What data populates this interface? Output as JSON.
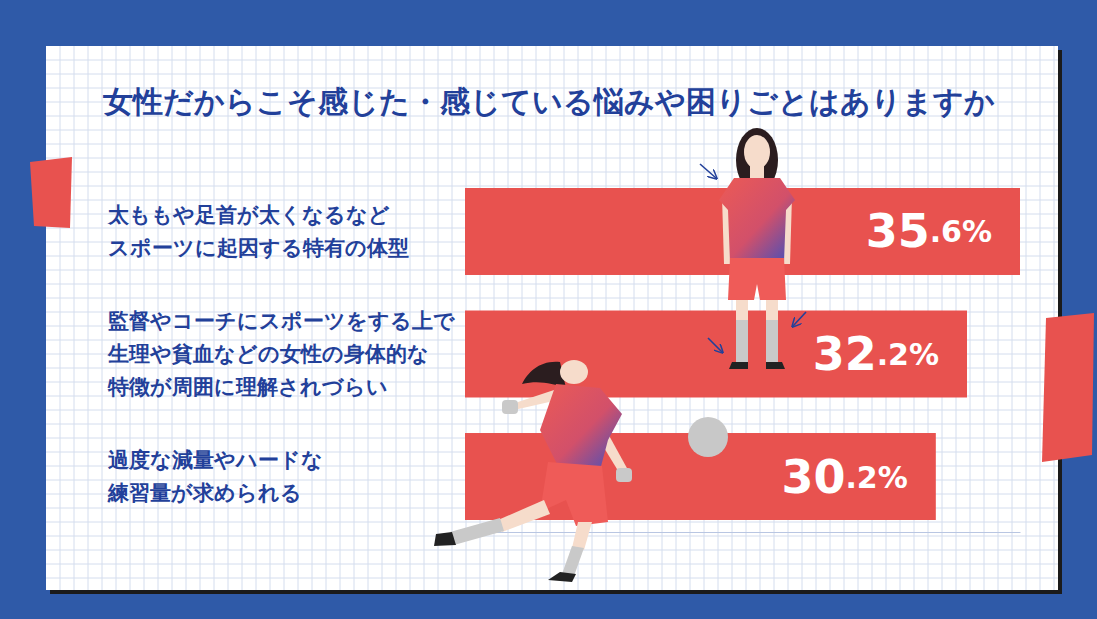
{
  "chart_data": {
    "type": "bar",
    "orientation": "horizontal",
    "title": "女性だからこそ感じた・感じている悩みや困りごとはありますか",
    "categories": [
      "太ももや足首が太くなるなど\nスポーツに起因する特有の体型",
      "監督やコーチにスポーツをする上で\n生理や貧血などの女性の身体的な\n特徴が周囲に理解されづらい",
      "過度な減量やハードな\n練習量が求められる"
    ],
    "values": [
      35.6,
      32.2,
      30.2
    ],
    "value_labels": [
      "35.6%",
      "32.2%",
      "30.2%"
    ],
    "data_labels": true,
    "color": "#e8524f",
    "xlim": [
      0,
      35.6
    ],
    "tick_labels": false,
    "grid": false
  }
}
